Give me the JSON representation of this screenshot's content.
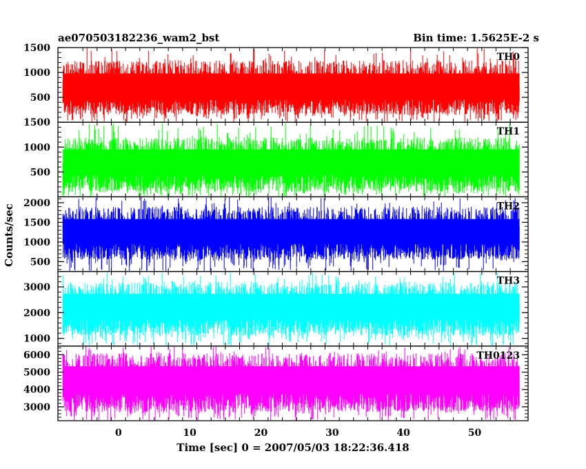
{
  "header": {
    "title": "ae070503182236_wam2_bst",
    "bin_time": "Bin time: 1.5625E-2 s"
  },
  "chart_data": {
    "type": "line",
    "title": "ae070503182236_wam2_bst",
    "xlabel": "Time [sec] 0 = 2007/05/03 18:22:36.418",
    "ylabel": "Counts/sec",
    "xlim": [
      -8.5,
      57.5
    ],
    "x_range": [
      -7.8,
      56.3
    ],
    "x_ticks": [
      0,
      10,
      20,
      30,
      40,
      50
    ],
    "x_tick_labels": [
      "0",
      "10",
      "20",
      "30",
      "40",
      "50"
    ],
    "panels": [
      {
        "name": "TH0",
        "color": "#ff0000",
        "ylim": [
          0,
          1500
        ],
        "y_ticks": [
          500,
          1000,
          1500
        ],
        "y_tick_labels": [
          "500",
          "1000",
          "1500"
        ],
        "typical_range": [
          150,
          1250
        ],
        "mean": 650,
        "max_observed": 1500
      },
      {
        "name": "TH1",
        "color": "#00ff00",
        "ylim": [
          0,
          1500
        ],
        "y_ticks": [
          500,
          1000,
          1500
        ],
        "y_tick_labels": [
          "500",
          "1000",
          "1500"
        ],
        "typical_range": [
          100,
          1200
        ],
        "mean": 650,
        "max_observed": 1500
      },
      {
        "name": "TH2",
        "color": "#0000ff",
        "ylim": [
          250,
          2150
        ],
        "y_ticks": [
          500,
          1000,
          1500,
          2000
        ],
        "y_tick_labels": [
          "500",
          "1000",
          "1500",
          "2000"
        ],
        "typical_range": [
          550,
          1900
        ],
        "mean": 1200,
        "max_observed": 2150
      },
      {
        "name": "TH3",
        "color": "#00ffff",
        "ylim": [
          700,
          3600
        ],
        "y_ticks": [
          1000,
          2000,
          3000
        ],
        "y_tick_labels": [
          "1000",
          "2000",
          "3000"
        ],
        "typical_range": [
          1100,
          3200
        ],
        "mean": 2150,
        "max_observed": 3600
      },
      {
        "name": "TH0123",
        "color": "#ff00ff",
        "ylim": [
          2200,
          6500
        ],
        "y_ticks": [
          3000,
          4000,
          5000,
          6000
        ],
        "y_tick_labels": [
          "3000",
          "4000",
          "5000",
          "6000"
        ],
        "typical_range": [
          2700,
          6100
        ],
        "mean": 4400,
        "max_observed": 6500
      }
    ]
  }
}
